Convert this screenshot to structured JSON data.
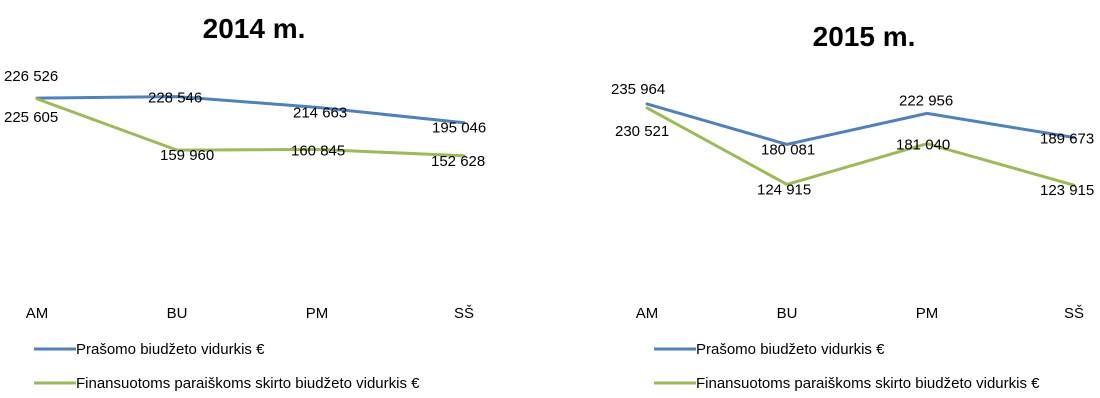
{
  "chart_data": [
    {
      "type": "line",
      "title": "2014 m.",
      "categories": [
        "AM",
        "BU",
        "PM",
        "SŠ"
      ],
      "series": [
        {
          "name": "Prašomo biudžeto vidurkis €",
          "color": "#4f81bd",
          "values": [
            226526,
            228546,
            214663,
            195046
          ],
          "labels": [
            "226 526",
            "228 546",
            "214 663",
            "195 046"
          ]
        },
        {
          "name": "Finansuotoms paraiškoms skirto biudžeto vidurkis €",
          "color": "#9bbb59",
          "values": [
            225605,
            159960,
            160845,
            152628
          ],
          "labels": [
            "225 605",
            "159 960",
            "160 845",
            "152 628"
          ]
        }
      ],
      "ylim": [
        0,
        260000
      ],
      "grid": false,
      "legend": "bottom-left"
    },
    {
      "type": "line",
      "title": "2015 m.",
      "categories": [
        "AM",
        "BU",
        "PM",
        "SŠ"
      ],
      "series": [
        {
          "name": "Prašomo biudžeto vidurkis €",
          "color": "#4f81bd",
          "values": [
            235964,
            180081,
            222956,
            189673
          ],
          "labels": [
            "235 964",
            "180 081",
            "222 956",
            "189 673"
          ]
        },
        {
          "name": "Finansuotoms paraiškoms skirto biudžeto vidurkis €",
          "color": "#9bbb59",
          "values": [
            230521,
            124915,
            181040,
            123915
          ],
          "labels": [
            "230 521",
            "124 915",
            "181 040",
            "123 915"
          ]
        }
      ],
      "ylim": [
        0,
        280000
      ],
      "grid": false,
      "legend": "bottom-left"
    }
  ]
}
